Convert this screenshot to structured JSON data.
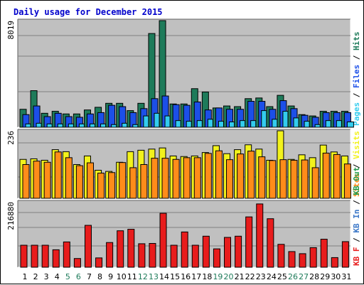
{
  "colors": {
    "title": "#0000cc",
    "panel_bg": "#c0c0c0",
    "hits": "#1e7b5a",
    "files": "#1c4fe8",
    "pages": "#33ccee",
    "visits": "#f2f21c",
    "sites": "#ff8c1a",
    "kb_out": "#1e9a4a",
    "kb_in": "#3c78c8",
    "kb_f": "#e81c1c",
    "weekend_label": "#1e7b5a",
    "weekday_label": "#000000"
  },
  "chart_data": [
    {
      "type": "bar",
      "title": "Daily usage for December 2015",
      "ylabel_max": "8019",
      "ylim": [
        0,
        8019
      ],
      "legend": [
        {
          "text": "Hits",
          "color_key": "hits"
        },
        {
          "text": "Files",
          "color_key": "files"
        },
        {
          "text": "Pages",
          "color_key": "pages"
        }
      ],
      "categories": [
        "1",
        "2",
        "3",
        "4",
        "5",
        "6",
        "7",
        "8",
        "9",
        "10",
        "11",
        "12",
        "13",
        "14",
        "15",
        "16",
        "17",
        "18",
        "19",
        "20",
        "21",
        "22",
        "23",
        "24",
        "25",
        "26",
        "27",
        "28",
        "29",
        "30",
        "31"
      ],
      "series": [
        {
          "name": "Hits",
          "color_key": "hits",
          "values": [
            1350,
            2750,
            1050,
            1200,
            1000,
            1000,
            1300,
            1500,
            1800,
            1800,
            1250,
            1800,
            7050,
            8019,
            1750,
            1750,
            2900,
            2650,
            1450,
            1600,
            1550,
            2150,
            2200,
            1550,
            2400,
            1600,
            950,
            850,
            1200,
            1200,
            1200
          ]
        },
        {
          "name": "Files",
          "color_key": "files",
          "values": [
            950,
            1600,
            800,
            1050,
            800,
            750,
            1000,
            1100,
            1650,
            1550,
            1100,
            1400,
            2150,
            2350,
            1700,
            1650,
            1900,
            1300,
            1450,
            1350,
            1350,
            1950,
            1950,
            1350,
            2000,
            1400,
            900,
            750,
            1100,
            1100,
            1100
          ]
        },
        {
          "name": "Pages",
          "color_key": "pages",
          "values": [
            250,
            300,
            250,
            250,
            250,
            250,
            250,
            250,
            200,
            300,
            200,
            850,
            1050,
            850,
            500,
            450,
            500,
            600,
            450,
            400,
            500,
            500,
            1250,
            600,
            1200,
            700,
            450,
            200,
            500,
            500,
            400
          ]
        }
      ]
    },
    {
      "type": "bar",
      "ylabel_max": "236",
      "ylim": [
        0,
        236
      ],
      "legend": [
        {
          "text": "Visits",
          "color_key": "visits"
        },
        {
          "text": "Sites",
          "color_key": "sites"
        }
      ],
      "categories": [
        "1",
        "2",
        "3",
        "4",
        "5",
        "6",
        "7",
        "8",
        "9",
        "10",
        "11",
        "12",
        "13",
        "14",
        "15",
        "16",
        "17",
        "18",
        "19",
        "20",
        "21",
        "22",
        "23",
        "24",
        "25",
        "26",
        "27",
        "28",
        "29",
        "30",
        "31"
      ],
      "series": [
        {
          "name": "Visits",
          "color_key": "visits",
          "values": [
            136,
            138,
            133,
            170,
            163,
            118,
            148,
            98,
            94,
            126,
            163,
            168,
            172,
            176,
            148,
            146,
            148,
            160,
            184,
            156,
            170,
            187,
            172,
            133,
            236,
            136,
            152,
            142,
            186,
            162,
            148
          ]
        },
        {
          "name": "Sites",
          "color_key": "sites",
          "values": [
            118,
            130,
            126,
            162,
            142,
            114,
            124,
            88,
            90,
            125,
            107,
            118,
            140,
            140,
            136,
            142,
            142,
            157,
            166,
            135,
            155,
            165,
            145,
            132,
            135,
            133,
            134,
            107,
            158,
            153,
            120
          ]
        }
      ]
    },
    {
      "type": "bar",
      "ylabel_max": "216880",
      "ylim": [
        0,
        216880
      ],
      "legend": [
        {
          "text": "KB Out",
          "color_key": "kb_out"
        },
        {
          "text": "KB In",
          "color_key": "kb_in"
        },
        {
          "text": "KB F",
          "color_key": "kb_f"
        }
      ],
      "categories": [
        "1",
        "2",
        "3",
        "4",
        "5",
        "6",
        "7",
        "8",
        "9",
        "10",
        "11",
        "12",
        "13",
        "14",
        "15",
        "16",
        "17",
        "18",
        "19",
        "20",
        "21",
        "22",
        "23",
        "24",
        "25",
        "26",
        "27",
        "28",
        "29",
        "30",
        "31"
      ],
      "series": [
        {
          "name": "KB F",
          "color_key": "kb_f",
          "values": [
            73000,
            73000,
            73000,
            58000,
            84000,
            29000,
            139000,
            31000,
            82000,
            121000,
            126000,
            78000,
            79000,
            179000,
            73000,
            117000,
            73000,
            103000,
            61000,
            99000,
            103000,
            167000,
            210000,
            161000,
            76000,
            52000,
            45000,
            65000,
            93000,
            32000,
            85000
          ]
        }
      ]
    }
  ]
}
